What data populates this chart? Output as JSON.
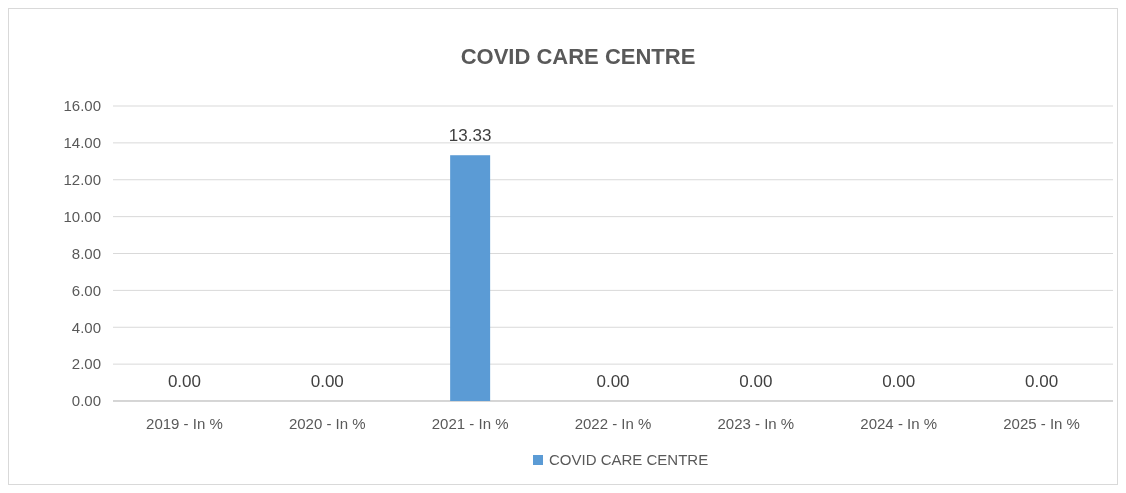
{
  "chart_data": {
    "type": "bar",
    "title": "COVID CARE CENTRE",
    "categories": [
      "2019 - In %",
      "2020 - In %",
      "2021 - In %",
      "2022 - In %",
      "2023 - In %",
      "2024 - In %",
      "2025 - In %"
    ],
    "series": [
      {
        "name": "COVID CARE CENTRE",
        "color": "#5b9bd5",
        "values": [
          0,
          0,
          13.33,
          0,
          0,
          0,
          0
        ],
        "value_labels": [
          "0.00",
          "0.00",
          "13.33",
          "0.00",
          "0.00",
          "0.00",
          "0.00"
        ]
      }
    ],
    "ylim": [
      0,
      16
    ],
    "yticks": [
      {
        "value": 0,
        "label": "0.00"
      },
      {
        "value": 2,
        "label": "2.00"
      },
      {
        "value": 4,
        "label": "4.00"
      },
      {
        "value": 6,
        "label": "6.00"
      },
      {
        "value": 8,
        "label": "8.00"
      },
      {
        "value": 10,
        "label": "10.00"
      },
      {
        "value": 12,
        "label": "12.00"
      },
      {
        "value": 14,
        "label": "14.00"
      },
      {
        "value": 16,
        "label": "16.00"
      }
    ],
    "grid": "y",
    "legend": "bottom"
  }
}
